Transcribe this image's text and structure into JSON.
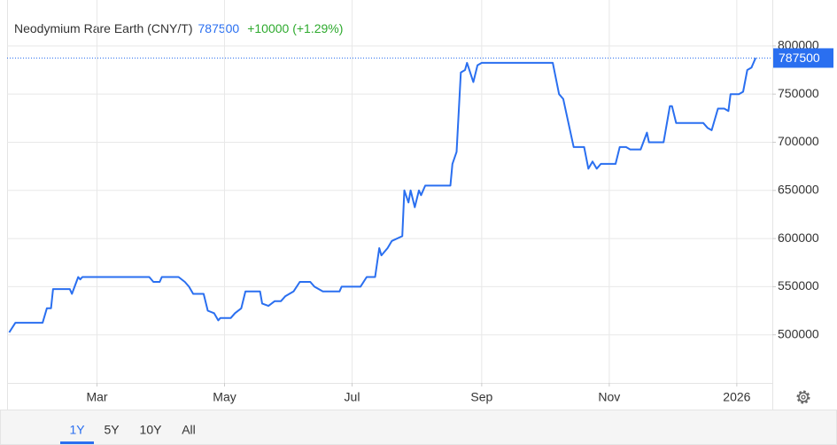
{
  "chart_data": {
    "type": "line",
    "title": "Neodymium Rare Earth (CNY/T)",
    "last_price": 787500,
    "change": "+10000 (+1.29%)",
    "color": "#2a6ff0",
    "change_color": "#2eaa2e",
    "grid": true,
    "x": [
      17,
      20,
      33,
      35,
      37,
      38,
      46,
      47,
      50,
      51,
      52,
      84,
      86,
      89,
      90,
      98,
      101,
      103,
      105,
      110,
      112,
      115,
      117,
      118,
      123,
      125,
      128,
      130,
      137,
      138,
      141,
      144,
      147,
      149,
      153,
      156,
      161,
      163,
      167,
      175,
      176,
      185,
      188,
      192,
      194,
      195,
      198,
      200,
      205,
      206,
      208,
      209,
      211,
      213,
      214,
      216,
      228,
      229,
      231,
      233,
      235,
      236,
      239,
      241,
      243,
      277,
      280,
      282,
      287,
      292,
      294,
      296,
      298,
      300,
      307,
      309,
      312,
      314,
      319,
      322,
      323,
      330,
      333,
      334,
      336,
      349,
      351,
      353,
      356,
      359,
      361,
      362,
      366,
      368,
      370,
      372,
      374
    ],
    "series": [
      {
        "values": [
          502500,
          512500,
          512500,
          527500,
          527500,
          547500,
          547500,
          542500,
          560000,
          557500,
          560000,
          560000,
          555000,
          555000,
          560000,
          560000,
          555000,
          550000,
          542500,
          542500,
          525000,
          522500,
          515000,
          517500,
          517500,
          522500,
          527500,
          545000,
          545000,
          532500,
          530000,
          535000,
          535000,
          540000,
          545000,
          555000,
          555000,
          550000,
          545000,
          545000,
          550000,
          550000,
          560000,
          560000,
          590000,
          582500,
          590000,
          597500,
          602500,
          650000,
          637500,
          650000,
          632500,
          650000,
          645000,
          655000,
          655000,
          677500,
          690000,
          772500,
          775000,
          782500,
          762500,
          780000,
          782500,
          782500,
          750000,
          745000,
          695000,
          695000,
          672500,
          680000,
          672500,
          677500,
          677500,
          695000,
          695000,
          692500,
          692500,
          710000,
          700000,
          700000,
          737500,
          737500,
          720000,
          720000,
          715000,
          712500,
          735000,
          735000,
          732500,
          750000,
          750000,
          752500,
          775000,
          777500,
          787500
        ]
      }
    ],
    "xlim": [
      16,
      382
    ],
    "xticks": [
      {
        "value": 59,
        "label": "Mar"
      },
      {
        "value": 120,
        "label": "May"
      },
      {
        "value": 181,
        "label": "Jul"
      },
      {
        "value": 243,
        "label": "Sep"
      },
      {
        "value": 304,
        "label": "Nov"
      },
      {
        "value": 365,
        "label": "2026"
      }
    ],
    "ylim": [
      450000,
      845000
    ],
    "yticks": [
      500000,
      550000,
      600000,
      650000,
      700000,
      750000,
      800000
    ],
    "ranges": [
      "1Y",
      "5Y",
      "10Y",
      "All"
    ],
    "selected_range": 0
  }
}
